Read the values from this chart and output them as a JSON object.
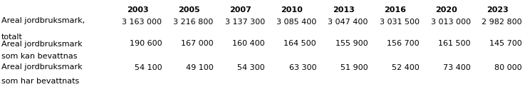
{
  "columns": [
    "2003",
    "2005",
    "2007",
    "2010",
    "2013",
    "2016",
    "2020",
    "2023"
  ],
  "rows": [
    {
      "label": [
        "Areal jordbruksmark,",
        "totalt"
      ],
      "values": [
        "3 163 000",
        "3 216 800",
        "3 137 300",
        "3 085 400",
        "3 047 400",
        "3 031 500",
        "3 013 000",
        "2 982 800"
      ]
    },
    {
      "label": [
        "Areal jordbruksmark",
        "som kan bevattnas"
      ],
      "values": [
        "190 600",
        "167 000",
        "160 400",
        "164 500",
        "155 900",
        "156 700",
        "161 500",
        "145 700"
      ]
    },
    {
      "label": [
        "Areal jordbruksmark",
        "som har bevattnats"
      ],
      "values": [
        "54 100",
        "49 100",
        "54 300",
        "63 300",
        "51 900",
        "52 400",
        "73 400",
        "80 000"
      ]
    }
  ],
  "header_fontsize": 8.0,
  "cell_fontsize": 8.0,
  "label_fontsize": 8.0,
  "background_color": "#ffffff",
  "text_color": "#000000",
  "figsize": [
    7.37,
    1.29
  ],
  "dpi": 100
}
